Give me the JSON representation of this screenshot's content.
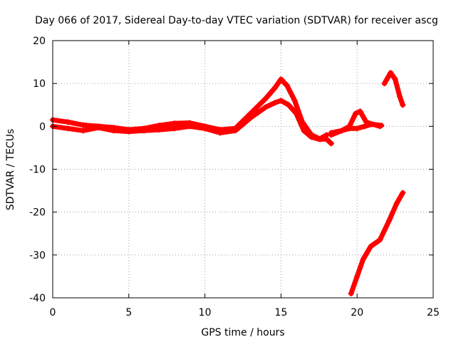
{
  "chart_data": {
    "type": "scatter",
    "title": "Day 066 of 2017, Sidereal Day-to-day VTEC variation (SDTVAR) for receiver ascg",
    "xlabel": "GPS time / hours",
    "ylabel": "SDTVAR / TECUs",
    "xlim": [
      0,
      25
    ],
    "ylim": [
      -40,
      20
    ],
    "xticks": [
      0,
      5,
      10,
      15,
      20,
      25
    ],
    "yticks": [
      -40,
      -30,
      -20,
      -10,
      0,
      10,
      20
    ],
    "xtick_labels": [
      "0",
      "5",
      "10",
      "15",
      "20",
      "25"
    ],
    "ytick_labels": [
      "-40",
      "-30",
      "-20",
      "-10",
      "0",
      "10",
      "20"
    ],
    "grid": true,
    "series": [
      {
        "name": "track-main-upper",
        "color": "#ff0000",
        "x": [
          0,
          1,
          2,
          3,
          4,
          5,
          6,
          7,
          8,
          9,
          10,
          11,
          12,
          13,
          14,
          14.6,
          15,
          15.4,
          15.9,
          16.4,
          17,
          17.6,
          18,
          18.3
        ],
        "y": [
          1.5,
          1,
          0.3,
          0,
          -0.3,
          -0.8,
          -0.5,
          0.2,
          0.7,
          0.8,
          0,
          -0.8,
          -0.5,
          3,
          6.5,
          9,
          11,
          9.5,
          6,
          1,
          -2,
          -3,
          -3,
          -4
        ]
      },
      {
        "name": "track-main-lower",
        "color": "#ff0000",
        "x": [
          0,
          1,
          2,
          3,
          4,
          5,
          6,
          7,
          8,
          9,
          10,
          11,
          12,
          13,
          14,
          14.6,
          15,
          15.5,
          16,
          16.5,
          17,
          17.5,
          18
        ],
        "y": [
          0,
          -0.5,
          -1,
          -0.3,
          -1,
          -1.2,
          -1,
          -0.8,
          -0.5,
          0,
          -0.5,
          -1.5,
          -1,
          2,
          4.5,
          5.5,
          6,
          5,
          3,
          -1,
          -2.5,
          -3,
          -2
        ]
      },
      {
        "name": "track-mid-bump",
        "color": "#ff0000",
        "x": [
          18.3,
          19,
          19.5,
          19.9,
          20.2,
          20.6,
          21,
          21.6
        ],
        "y": [
          -2,
          -1,
          0,
          3,
          3.5,
          1,
          0.5,
          0.2
        ]
      },
      {
        "name": "track-mid-flat",
        "color": "#ff0000",
        "x": [
          18.3,
          19,
          19.5,
          20,
          20.5,
          21,
          21.5
        ],
        "y": [
          -1.5,
          -1,
          -0.5,
          -0.5,
          0,
          0.5,
          0
        ]
      },
      {
        "name": "track-late-upper",
        "color": "#ff0000",
        "x": [
          21.8,
          22.2,
          22.5,
          22.8,
          23
        ],
        "y": [
          10,
          12.5,
          11,
          7,
          5
        ]
      },
      {
        "name": "track-late-lower",
        "color": "#ff0000",
        "x": [
          19.6,
          20,
          20.4,
          20.9,
          21.5,
          22.1,
          22.6,
          23
        ],
        "y": [
          -39,
          -35,
          -31,
          -28,
          -26.5,
          -22,
          -18,
          -15.5
        ]
      }
    ]
  }
}
